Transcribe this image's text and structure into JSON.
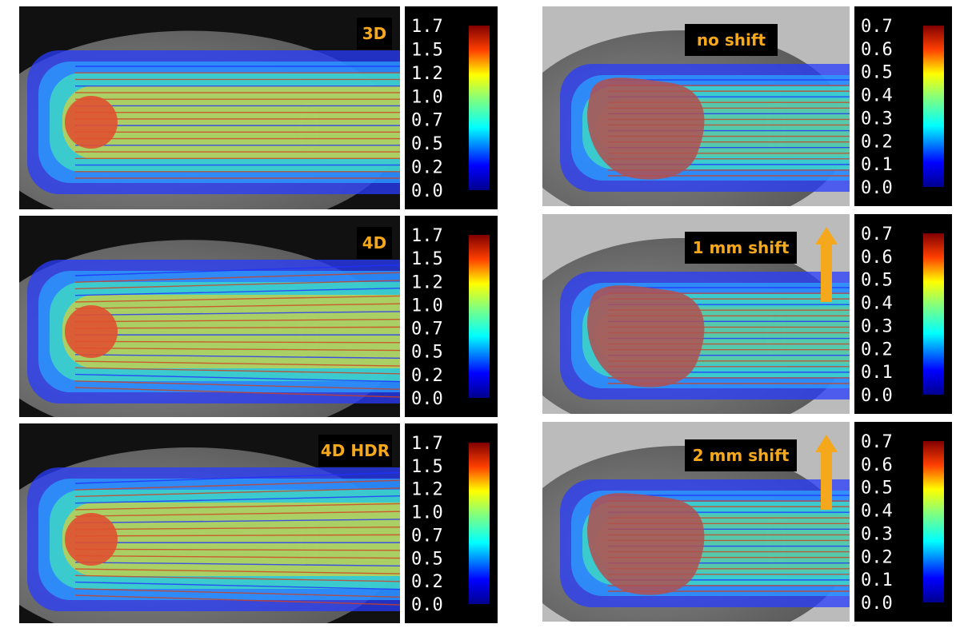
{
  "panels": [
    {
      "label": "3D",
      "colorbar_ticks": [
        "1.7",
        "1.5",
        "1.2",
        "1.0",
        "0.7",
        "0.5",
        "0.2",
        "0.0"
      ]
    },
    {
      "label": "4D",
      "colorbar_ticks": [
        "1.7",
        "1.5",
        "1.2",
        "1.0",
        "0.7",
        "0.5",
        "0.2",
        "0.0"
      ]
    },
    {
      "label": "4D HDR",
      "colorbar_ticks": [
        "1.7",
        "1.5",
        "1.2",
        "1.0",
        "0.7",
        "0.5",
        "0.2",
        "0.0"
      ]
    },
    {
      "label": "no shift",
      "colorbar_ticks": [
        "0.7",
        "0.6",
        "0.5",
        "0.4",
        "0.3",
        "0.2",
        "0.1",
        "0.0"
      ]
    },
    {
      "label": "1 mm shift",
      "colorbar_ticks": [
        "0.7",
        "0.6",
        "0.5",
        "0.4",
        "0.3",
        "0.2",
        "0.1",
        "0.0"
      ]
    },
    {
      "label": "2 mm shift",
      "colorbar_ticks": [
        "0.7",
        "0.6",
        "0.5",
        "0.4",
        "0.3",
        "0.2",
        "0.1",
        "0.0"
      ]
    }
  ]
}
